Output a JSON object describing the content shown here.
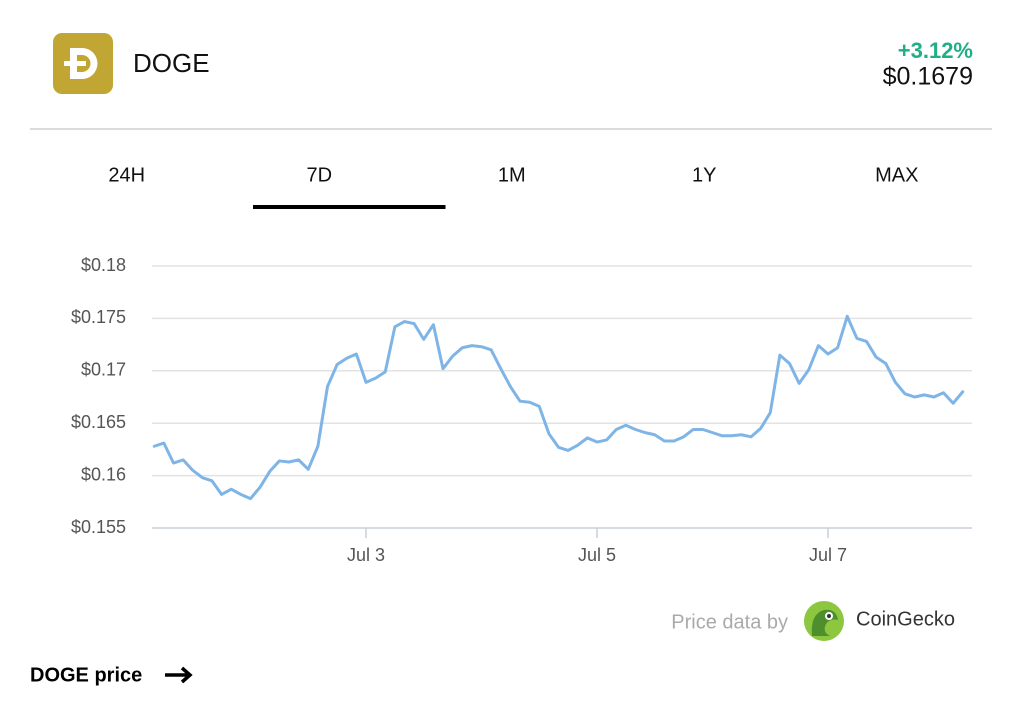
{
  "header": {
    "symbol": "DOGE",
    "change": "+3.12%",
    "price": "$0.1679"
  },
  "tabs": {
    "items": [
      "24H",
      "7D",
      "1M",
      "1Y",
      "MAX"
    ],
    "active": 1
  },
  "chart_data": {
    "type": "line",
    "categories": [
      null,
      null,
      null,
      null,
      null,
      null,
      null,
      null,
      null,
      null,
      null,
      null,
      null,
      null,
      null,
      null,
      null,
      null,
      null,
      null,
      null,
      null,
      "Jul 3",
      null,
      null,
      null,
      null,
      null,
      null,
      null,
      null,
      null,
      null,
      null,
      null,
      null,
      null,
      null,
      null,
      null,
      null,
      null,
      null,
      null,
      null,
      null,
      "Jul 5",
      null,
      null,
      null,
      null,
      null,
      null,
      null,
      null,
      null,
      null,
      null,
      null,
      null,
      null,
      null,
      null,
      null,
      null,
      null,
      null,
      null,
      null,
      null,
      "Jul 7",
      null,
      null,
      null,
      null,
      null,
      null,
      null,
      null,
      null,
      null,
      null,
      null,
      null,
      null
    ],
    "series": [
      {
        "color": "#7fb5e6",
        "values": [
          0.1628,
          0.1631,
          0.1612,
          0.1615,
          0.1605,
          0.1598,
          0.1595,
          0.1582,
          0.1587,
          0.1582,
          0.1578,
          0.1589,
          0.1604,
          0.1614,
          0.1613,
          0.1615,
          0.1606,
          0.1628,
          0.1685,
          0.1706,
          0.1712,
          0.1716,
          0.1689,
          0.1693,
          0.1699,
          0.1742,
          0.1747,
          0.1745,
          0.173,
          0.1744,
          0.1702,
          0.1714,
          0.1722,
          0.1724,
          0.1723,
          0.172,
          0.1702,
          0.1685,
          0.1671,
          0.167,
          0.1666,
          0.164,
          0.1627,
          0.1624,
          0.1629,
          0.1636,
          0.1632,
          0.1634,
          0.1644,
          0.1648,
          0.1644,
          0.1641,
          0.1639,
          0.1633,
          0.1633,
          0.1637,
          0.1644,
          0.1644,
          0.1641,
          0.1638,
          0.1638,
          0.1639,
          0.1637,
          0.1645,
          0.166,
          0.1715,
          0.1707,
          0.1688,
          0.1701,
          0.1724,
          0.1716,
          0.1722,
          0.1752,
          0.1731,
          0.1728,
          0.1713,
          0.1707,
          0.1689,
          0.1678,
          0.1675,
          0.1677,
          0.1675,
          0.1679,
          0.1669,
          0.168
        ]
      }
    ],
    "ylim": [
      0.155,
      0.18
    ],
    "yticks": [
      {
        "value": 0.155,
        "label": "$0.155"
      },
      {
        "value": 0.16,
        "label": "$0.16"
      },
      {
        "value": 0.165,
        "label": "$0.165"
      },
      {
        "value": 0.17,
        "label": "$0.17"
      },
      {
        "value": 0.175,
        "label": "$0.175"
      },
      {
        "value": 0.18,
        "label": "$0.18"
      }
    ],
    "grid": true
  },
  "attribution": {
    "prefix": "Price data by",
    "source": "CoinGecko"
  },
  "footer": {
    "link": "DOGE price"
  }
}
